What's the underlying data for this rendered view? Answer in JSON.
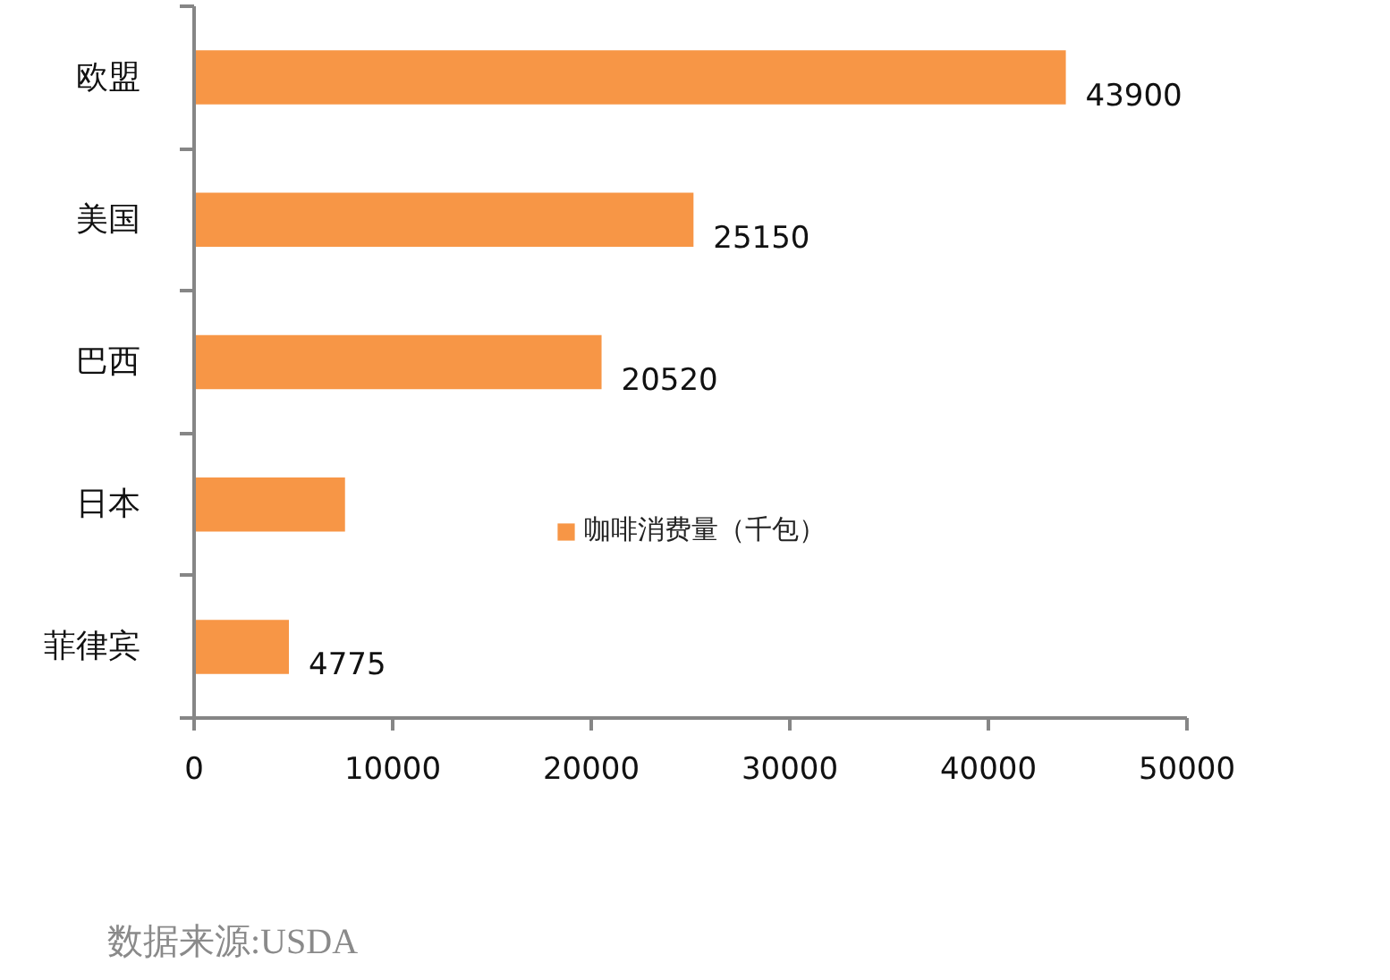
{
  "chart_data": {
    "type": "bar",
    "orientation": "horizontal",
    "categories": [
      "欧盟",
      "美国",
      "巴西",
      "日本",
      "菲律宾"
    ],
    "series": [
      {
        "name": "咖啡消费量（千包）",
        "color": "#f79646",
        "values": [
          43900,
          25150,
          20520,
          7600,
          4775
        ],
        "value_labels": [
          "43900",
          "25150",
          "20520",
          null,
          "4775"
        ]
      }
    ],
    "xlim": [
      0,
      50000
    ],
    "xticks": [
      0,
      10000,
      20000,
      30000,
      40000,
      50000
    ],
    "legend": "bottom",
    "annotations": [
      "数据来源:USDA"
    ]
  }
}
